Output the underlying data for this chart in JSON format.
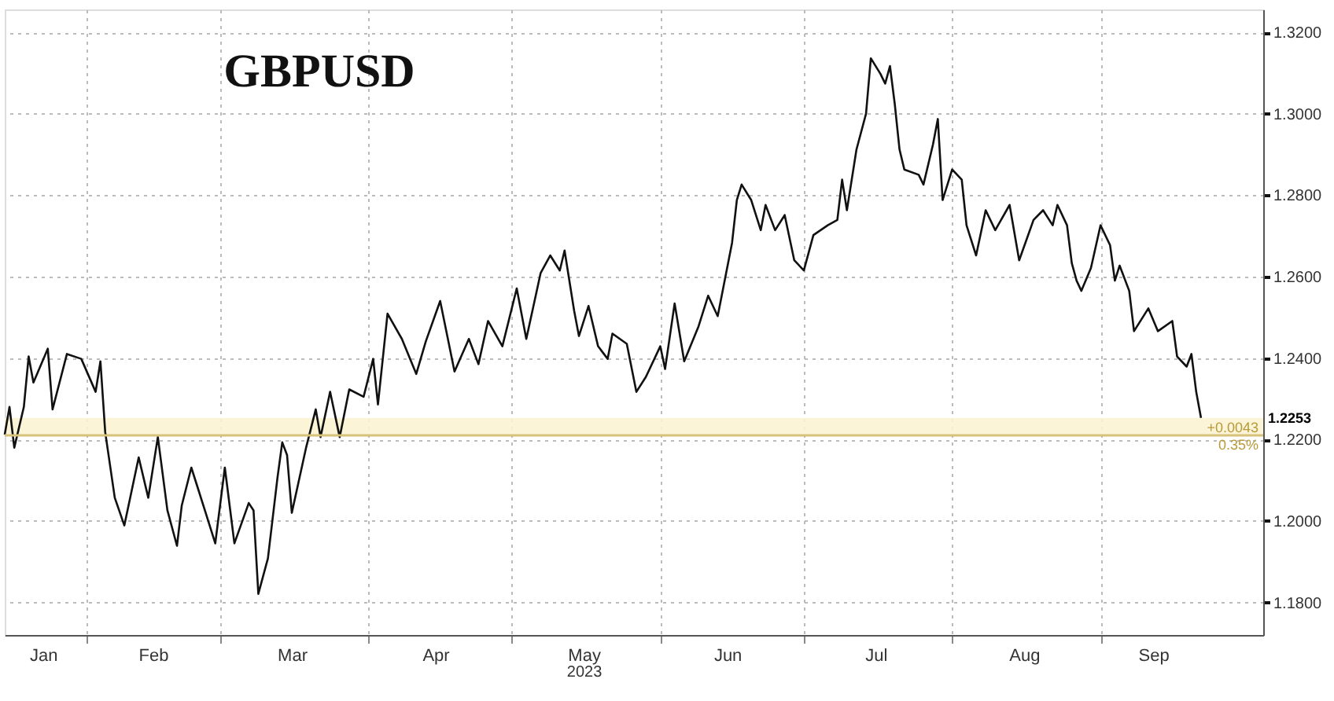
{
  "chart_data": {
    "type": "line",
    "title": "GBPUSD",
    "xlabel": "2023",
    "x": [
      "2023-01-15",
      "2023-01-16",
      "2023-01-17",
      "2023-01-19",
      "2023-01-20",
      "2023-01-21",
      "2023-01-24",
      "2023-01-25",
      "2023-01-28",
      "2023-01-31",
      "2023-02-03",
      "2023-02-04",
      "2023-02-05",
      "2023-02-07",
      "2023-02-09",
      "2023-02-12",
      "2023-02-14",
      "2023-02-16",
      "2023-02-18",
      "2023-02-20",
      "2023-02-21",
      "2023-02-23",
      "2023-02-26",
      "2023-02-28",
      "2023-03-02",
      "2023-03-04",
      "2023-03-07",
      "2023-03-08",
      "2023-03-09",
      "2023-03-11",
      "2023-03-13",
      "2023-03-14",
      "2023-03-15",
      "2023-03-16",
      "2023-03-19",
      "2023-03-21",
      "2023-03-22",
      "2023-03-24",
      "2023-03-26",
      "2023-03-28",
      "2023-03-31",
      "2023-04-02",
      "2023-04-03",
      "2023-04-05",
      "2023-04-08",
      "2023-04-11",
      "2023-04-13",
      "2023-04-16",
      "2023-04-19",
      "2023-04-22",
      "2023-04-24",
      "2023-04-26",
      "2023-04-29",
      "2023-05-02",
      "2023-05-04",
      "2023-05-07",
      "2023-05-09",
      "2023-05-11",
      "2023-05-12",
      "2023-05-14",
      "2023-05-15",
      "2023-05-17",
      "2023-05-19",
      "2023-05-21",
      "2023-05-22",
      "2023-05-25",
      "2023-05-27",
      "2023-05-29",
      "2023-06-01",
      "2023-06-02",
      "2023-06-04",
      "2023-06-06",
      "2023-06-09",
      "2023-06-11",
      "2023-06-13",
      "2023-06-16",
      "2023-06-17",
      "2023-06-18",
      "2023-06-20",
      "2023-06-22",
      "2023-06-23",
      "2023-06-25",
      "2023-06-27",
      "2023-06-29",
      "2023-07-01",
      "2023-07-03",
      "2023-07-06",
      "2023-07-08",
      "2023-07-09",
      "2023-07-10",
      "2023-07-12",
      "2023-07-14",
      "2023-07-15",
      "2023-07-17",
      "2023-07-18",
      "2023-07-19",
      "2023-07-20",
      "2023-07-21",
      "2023-07-22",
      "2023-07-25",
      "2023-07-26",
      "2023-07-28",
      "2023-07-29",
      "2023-07-30",
      "2023-08-01",
      "2023-08-03",
      "2023-08-04",
      "2023-08-06",
      "2023-08-08",
      "2023-08-10",
      "2023-08-13",
      "2023-08-15",
      "2023-08-18",
      "2023-08-20",
      "2023-08-22",
      "2023-08-23",
      "2023-08-25",
      "2023-08-26",
      "2023-08-27",
      "2023-08-28",
      "2023-08-30",
      "2023-09-01",
      "2023-09-03",
      "2023-09-04",
      "2023-09-05",
      "2023-09-07",
      "2023-09-08",
      "2023-09-11",
      "2023-09-13",
      "2023-09-16",
      "2023-09-17",
      "2023-09-19",
      "2023-09-20",
      "2023-09-21",
      "2023-09-22"
    ],
    "series": [
      {
        "color": "#111111",
        "values": [
          1.2212,
          1.228,
          1.218,
          1.228,
          1.2404,
          1.234,
          1.2423,
          1.2274,
          1.241,
          1.2398,
          1.2317,
          1.2392,
          1.2218,
          1.2057,
          1.1989,
          1.2156,
          1.2057,
          1.2206,
          1.2026,
          1.1939,
          1.2038,
          1.2131,
          1.202,
          1.1945,
          1.2131,
          1.1945,
          1.2044,
          1.2026,
          1.1821,
          1.1908,
          1.2106,
          1.2193,
          1.2162,
          1.202,
          1.2181,
          1.2274,
          1.2206,
          1.2317,
          1.2206,
          1.2323,
          1.2305,
          1.2398,
          1.2286,
          1.2509,
          1.2447,
          1.2361,
          1.2441,
          1.254,
          1.2367,
          1.2447,
          1.2385,
          1.2491,
          1.2429,
          1.2571,
          1.2447,
          1.2609,
          1.2652,
          1.2615,
          1.2664,
          1.2516,
          1.2454,
          1.2528,
          1.2429,
          1.2398,
          1.246,
          1.2435,
          1.2317,
          1.2354,
          1.2429,
          1.2373,
          1.2534,
          1.2392,
          1.2478,
          1.2553,
          1.2503,
          1.2683,
          1.2788,
          1.2826,
          1.2788,
          1.2714,
          1.2776,
          1.2714,
          1.2751,
          1.264,
          1.2615,
          1.2702,
          1.2726,
          1.2739,
          1.2838,
          1.2763,
          1.2912,
          1.3,
          1.3136,
          1.3098,
          1.3074,
          1.3117,
          1.3024,
          1.2912,
          1.2863,
          1.285,
          1.2826,
          1.2925,
          1.2987,
          1.2788,
          1.2863,
          1.2838,
          1.2726,
          1.2652,
          1.2763,
          1.2714,
          1.2776,
          1.264,
          1.2739,
          1.2763,
          1.2726,
          1.2776,
          1.2726,
          1.2633,
          1.259,
          1.2565,
          1.2621,
          1.2726,
          1.2677,
          1.259,
          1.2627,
          1.2565,
          1.2466,
          1.2522,
          1.2466,
          1.2491,
          1.2404,
          1.2379,
          1.241,
          1.2317,
          1.2253
        ]
      }
    ],
    "xlim": [
      "2023-01-15",
      "2023-10-05"
    ],
    "xticks": [
      {
        "value": "2023-01-23",
        "label": "Jan"
      },
      {
        "value": "2023-02-01",
        "label": null
      },
      {
        "value": "2023-02-15",
        "label": "Feb"
      },
      {
        "value": "2023-03-01",
        "label": null
      },
      {
        "value": "2023-03-16",
        "label": "Mar"
      },
      {
        "value": "2023-04-01",
        "label": null
      },
      {
        "value": "2023-04-15",
        "label": "Apr"
      },
      {
        "value": "2023-05-01",
        "label": null
      },
      {
        "value": "2023-05-16",
        "label": "May"
      },
      {
        "value": "2023-06-01",
        "label": null
      },
      {
        "value": "2023-06-15",
        "label": "Jun"
      },
      {
        "value": "2023-07-01",
        "label": null
      },
      {
        "value": "2023-07-16",
        "label": "Jul"
      },
      {
        "value": "2023-08-01",
        "label": null
      },
      {
        "value": "2023-08-16",
        "label": "Aug"
      },
      {
        "value": "2023-09-01",
        "label": null
      },
      {
        "value": "2023-09-12",
        "label": "Sep"
      }
    ],
    "ylim": [
      1.172,
      1.3256
    ],
    "yticks": [
      {
        "value": 1.18,
        "label": "1.1800"
      },
      {
        "value": 1.2,
        "label": "1.2000"
      },
      {
        "value": 1.22,
        "label": "1.2200"
      },
      {
        "value": 1.24,
        "label": "1.2400"
      },
      {
        "value": 1.26,
        "label": "1.2600"
      },
      {
        "value": 1.28,
        "label": "1.2800"
      },
      {
        "value": 1.3,
        "label": "1.3000"
      },
      {
        "value": 1.32,
        "label": "1.3200"
      }
    ],
    "grid": true,
    "marker": "none",
    "line_style": "solid",
    "bands": [
      {
        "axis": "y",
        "from": 1.221,
        "to": 1.2253,
        "color": "#fbf3d2"
      }
    ],
    "ref_lines": [
      {
        "axis": "y",
        "value": 1.221,
        "color": "#d8c27a",
        "line_style": "solid"
      }
    ],
    "annotations": [
      "1.2253",
      "+0.0043",
      "0.35%"
    ]
  }
}
